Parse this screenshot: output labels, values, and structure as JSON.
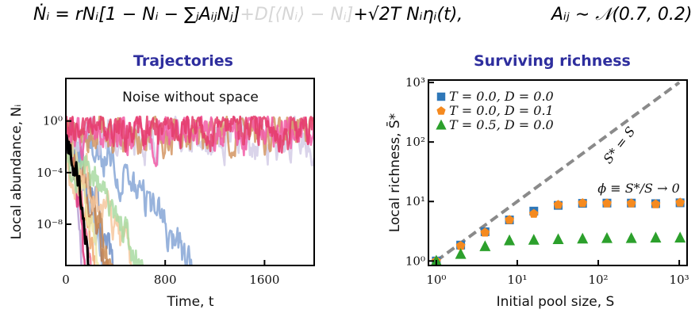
{
  "equation": {
    "lhs": "Ṅᵢ = rNᵢ[1 − Nᵢ − ∑ⱼAᵢⱼNⱼ]",
    "diffusion_term": "+D[⟨Nᵢ⟩ − Nᵢ]",
    "noise_term": "+√2T Nᵢηᵢ(t),",
    "interaction_dist": "Aᵢⱼ ∼ 𝒩(0.7, 0.2)"
  },
  "colors": {
    "title": "#2e2e9e",
    "diffusion_faded": "#d6d6d6",
    "square": "#2f77b8",
    "pentagon": "#f58a1f",
    "triangle": "#2ca02c",
    "dashed": "#8a8a8a"
  },
  "chart_data": [
    {
      "type": "line",
      "title": "Trajectories",
      "annotation": "Noise without space",
      "xlabel": "Time, t",
      "ylabel": "Local abundance, Nᵢ",
      "xlim": [
        0,
        2000
      ],
      "ylim_log10": [
        -11.2,
        3.3
      ],
      "xticks": [
        0,
        800,
        1600
      ],
      "xtick_labels": [
        "0",
        "800",
        "1600"
      ],
      "yticks_log10": [
        0,
        -4,
        -8
      ],
      "ytick_labels": [
        "10⁰",
        "10⁻⁴",
        "10⁻⁸"
      ],
      "grid": false,
      "series": [
        {
          "name": "highlighted",
          "color": "#000000",
          "extinction_t": 175,
          "mean_log10": -1.5,
          "seed": 3
        },
        {
          "name": "crimson",
          "color": "#e43a6a",
          "extinction_t": 2000,
          "mean_log10": -0.6,
          "seed": 11
        },
        {
          "name": "hot-pink",
          "color": "#f25aa6",
          "extinction_t": 2000,
          "mean_log10": -0.9,
          "seed": 17
        },
        {
          "name": "tan",
          "color": "#d49563",
          "extinction_t": 2000,
          "mean_log10": -0.8,
          "seed": 23
        },
        {
          "name": "lavender",
          "color": "#d3cce6",
          "extinction_t": 2000,
          "mean_log10": -1.5,
          "seed": 29
        },
        {
          "name": "blue",
          "color": "#86a6d6",
          "extinction_t": 1000,
          "mean_log10": -1.0,
          "seed": 31
        },
        {
          "name": "light-green",
          "color": "#a9daa2",
          "extinction_t": 600,
          "mean_log10": -3.5,
          "seed": 37
        },
        {
          "name": "peach",
          "color": "#f6c79d",
          "extinction_t": 560,
          "mean_log10": -4.5,
          "seed": 41
        },
        {
          "name": "pale-yellow",
          "color": "#efe7a6",
          "extinction_t": 260,
          "mean_log10": -2.0,
          "seed": 43
        },
        {
          "name": "orange-brown",
          "color": "#c98a52",
          "extinction_t": 360,
          "mean_log10": -2.5,
          "seed": 47
        },
        {
          "name": "slate-blue",
          "color": "#6f8fc8",
          "extinction_t": 400,
          "mean_log10": -2.0,
          "seed": 53
        },
        {
          "name": "magenta",
          "color": "#e0307a",
          "extinction_t": 150,
          "mean_log10": -3.0,
          "seed": 59
        },
        {
          "name": "brown",
          "color": "#b9784a",
          "extinction_t": 320,
          "mean_log10": -3.0,
          "seed": 61
        },
        {
          "name": "rose",
          "color": "#ec6d8f",
          "extinction_t": 200,
          "mean_log10": -2.0,
          "seed": 67
        },
        {
          "name": "sky",
          "color": "#9ab8e0",
          "extinction_t": 300,
          "mean_log10": -1.5,
          "seed": 71
        },
        {
          "name": "mauve",
          "color": "#b6a0d4",
          "extinction_t": 120,
          "mean_log10": -1.0,
          "seed": 73
        },
        {
          "name": "apricot",
          "color": "#f0a870",
          "extinction_t": 230,
          "mean_log10": -3.0,
          "seed": 79
        }
      ]
    },
    {
      "type": "scatter",
      "title": "Surviving richness",
      "xlabel": "Initial pool size, S",
      "ylabel": "Local richness, S̄*",
      "xscale": "log",
      "yscale": "log",
      "xlim": [
        0.8,
        1250
      ],
      "ylim": [
        0.84,
        1100
      ],
      "xticks": [
        1,
        10,
        100,
        1000
      ],
      "xtick_labels": [
        "10⁰",
        "10¹",
        "10²",
        "10³"
      ],
      "yticks": [
        1,
        10,
        100,
        1000
      ],
      "ytick_labels": [
        "10⁰",
        "10¹",
        "10²",
        "10³"
      ],
      "grid": false,
      "legend_position": "top-left",
      "x": [
        1,
        2,
        4,
        8,
        16,
        32,
        64,
        128,
        256,
        512,
        1024
      ],
      "series": [
        {
          "name": "T = 0.0, D = 0.0",
          "marker": "square",
          "values": [
            1.0,
            1.85,
            3.1,
            4.9,
            6.9,
            8.6,
            9.3,
            9.4,
            9.4,
            9.2,
            9.5
          ]
        },
        {
          "name": "T = 0.0, D = 0.1",
          "marker": "pentagon",
          "values": [
            1.0,
            1.8,
            3.0,
            4.9,
            6.2,
            8.8,
            9.4,
            9.3,
            9.3,
            9.0,
            9.6
          ]
        },
        {
          "name": "T = 0.5, D = 0.0",
          "marker": "triangle",
          "values": [
            1.0,
            1.3,
            1.75,
            2.2,
            2.25,
            2.3,
            2.35,
            2.4,
            2.4,
            2.45,
            2.45
          ]
        }
      ],
      "reference_line": {
        "label": "S* = S",
        "style": "dashed",
        "x": [
          1,
          1000
        ],
        "y": [
          1,
          1000
        ]
      },
      "annotation": "ϕ ≡ S*/S → 0"
    }
  ]
}
